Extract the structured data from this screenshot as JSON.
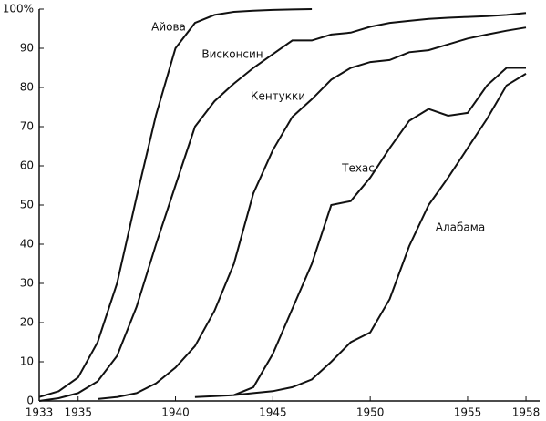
{
  "chart_data": {
    "type": "line",
    "x": [
      1933,
      1934,
      1935,
      1936,
      1937,
      1938,
      1939,
      1940,
      1941,
      1942,
      1943,
      1944,
      1945,
      1946,
      1947,
      1948,
      1949,
      1950,
      1951,
      1952,
      1953,
      1954,
      1955,
      1956,
      1957,
      1958
    ],
    "series": [
      {
        "name": "Айова",
        "color": "#111111",
        "values": [
          1,
          2.5,
          6,
          15,
          30,
          52,
          73,
          90,
          96.5,
          98.5,
          99.3,
          99.6,
          99.8,
          99.9,
          100,
          null,
          null,
          null,
          null,
          null,
          null,
          null,
          null,
          null,
          null,
          null
        ]
      },
      {
        "name": "Висконсин",
        "color": "#111111",
        "values": [
          0,
          0.7,
          2,
          5,
          11.5,
          24,
          40,
          55,
          70,
          76.5,
          81,
          85,
          88.5,
          92,
          92,
          93.5,
          94,
          95.5,
          96.5,
          97,
          97.5,
          97.8,
          98,
          98.2,
          98.5,
          99
        ]
      },
      {
        "name": "Кентукки",
        "color": "#111111",
        "values": [
          null,
          null,
          null,
          0.5,
          1,
          2,
          4.5,
          8.5,
          14,
          23,
          35,
          53,
          64,
          72.5,
          77,
          82,
          85,
          86.5,
          87,
          89,
          89.5,
          91,
          92.5,
          93.5,
          94.5,
          95.3
        ]
      },
      {
        "name": "Техас",
        "color": "#111111",
        "values": [
          null,
          null,
          null,
          null,
          null,
          null,
          null,
          null,
          1,
          1.2,
          1.5,
          3.5,
          12,
          23.5,
          35,
          50,
          51,
          57,
          64.5,
          71.5,
          74.5,
          72.8,
          73.5,
          80.5,
          85,
          85
        ]
      },
      {
        "name": "Алабама",
        "color": "#111111",
        "values": [
          null,
          null,
          null,
          null,
          null,
          null,
          null,
          null,
          null,
          null,
          1.5,
          2,
          2.5,
          3.5,
          5.5,
          10,
          15,
          17.5,
          26,
          39.5,
          50,
          57,
          64.5,
          72,
          80.5,
          83.5
        ]
      }
    ],
    "xlim": [
      1933,
      1958.7
    ],
    "xticks": [
      1933,
      1935,
      1940,
      1945,
      1950,
      1955,
      1958
    ],
    "ylim": [
      0,
      100
    ],
    "yticks": [
      0,
      10,
      20,
      30,
      40,
      50,
      60,
      70,
      80,
      90,
      {
        "value": 100,
        "label": "100%"
      }
    ]
  }
}
